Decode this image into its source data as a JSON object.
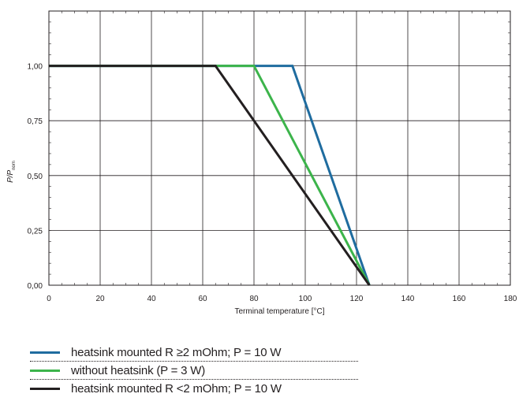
{
  "chart_data": {
    "type": "line",
    "xlabel": "Terminal temperature [°C]",
    "ylabel_main": "P/P",
    "ylabel_sub": "nom",
    "xlim": [
      0,
      180
    ],
    "ylim": [
      0,
      1.25
    ],
    "x_ticks": [
      "0",
      "20",
      "40",
      "60",
      "80",
      "100",
      "120",
      "140",
      "160",
      "180"
    ],
    "y_ticks": [
      "0,00",
      "0,25",
      "0,50",
      "0,75",
      "1,00"
    ],
    "grid": true,
    "legend_position": "bottom",
    "series": [
      {
        "name": "heatsink mounted  R ≥2 mOhm; P = 10 W",
        "color": "#1f6c9f",
        "points": [
          [
            0,
            1.0
          ],
          [
            95,
            1.0
          ],
          [
            125,
            0.0
          ]
        ]
      },
      {
        "name": "without heatsink (P = 3 W)",
        "color": "#3cb44b",
        "points": [
          [
            0,
            1.0
          ],
          [
            80,
            1.0
          ],
          [
            125,
            0.0
          ]
        ]
      },
      {
        "name": "heatsink mounted  R <2 mOhm; P = 10 W",
        "color": "#231f20",
        "points": [
          [
            0,
            1.0
          ],
          [
            65,
            1.0
          ],
          [
            125,
            0.0
          ]
        ]
      }
    ]
  }
}
